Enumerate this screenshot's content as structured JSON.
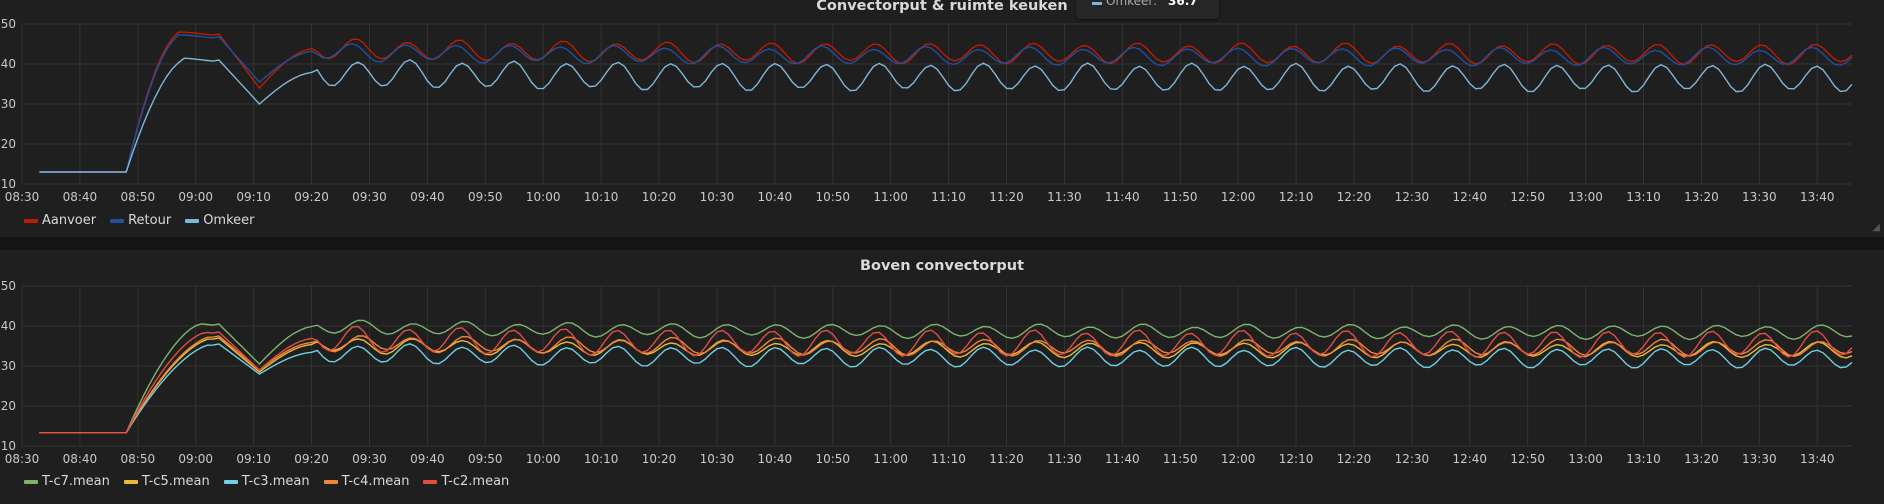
{
  "chart_data": [
    {
      "type": "line",
      "title": "Convectorput & ruimte keuken",
      "ylim": [
        10,
        50
      ],
      "yticks": [
        "10",
        "20",
        "30",
        "40",
        "50"
      ],
      "xticks": [
        "08:30",
        "08:40",
        "08:50",
        "09:00",
        "09:10",
        "09:20",
        "09:30",
        "09:40",
        "09:50",
        "10:00",
        "10:10",
        "10:20",
        "10:30",
        "10:40",
        "10:50",
        "11:00",
        "11:10",
        "11:20",
        "11:30",
        "11:40",
        "11:50",
        "12:00",
        "12:10",
        "12:20",
        "12:30",
        "12:40",
        "12:50",
        "13:00",
        "13:10",
        "13:20",
        "13:30",
        "13:40"
      ],
      "xrange_min": [
        0,
        316
      ],
      "grid": true,
      "legend": "bottom-left",
      "series": [
        {
          "name": "Aanvoer",
          "color": "#bf1b00",
          "shape": {
            "start": 13,
            "rise_at": 15,
            "rise_end": 24,
            "plateau": 47.5,
            "dip_at": 38,
            "dip_val": 34,
            "tail": 42.5,
            "amp": 2.3,
            "period": 9,
            "phase": 1.2
          }
        },
        {
          "name": "Retour",
          "color": "#1f4fa1",
          "shape": {
            "start": 13,
            "rise_at": 15,
            "rise_end": 24,
            "plateau": 46.8,
            "dip_at": 38,
            "dip_val": 35.5,
            "tail": 41.8,
            "amp": 2.0,
            "period": 9,
            "phase": 1.5
          }
        },
        {
          "name": "Omkeer",
          "color": "#7eb8d9",
          "shape": {
            "start": 13,
            "rise_at": 15,
            "rise_end": 25,
            "plateau": 41,
            "dip_at": 38,
            "dip_val": 30,
            "tail": 36.5,
            "amp": 3.2,
            "period": 9,
            "phase": 0.9
          }
        }
      ]
    },
    {
      "type": "line",
      "title": "Boven convectorput",
      "ylim": [
        10,
        50
      ],
      "yticks": [
        "10",
        "20",
        "30",
        "40",
        "50"
      ],
      "xticks": [
        "08:30",
        "08:40",
        "08:50",
        "09:00",
        "09:10",
        "09:20",
        "09:30",
        "09:40",
        "09:50",
        "10:00",
        "10:10",
        "10:20",
        "10:30",
        "10:40",
        "10:50",
        "11:00",
        "11:10",
        "11:20",
        "11:30",
        "11:40",
        "11:50",
        "12:00",
        "12:10",
        "12:20",
        "12:30",
        "12:40",
        "12:50",
        "13:00",
        "13:10",
        "13:20",
        "13:30",
        "13:40"
      ],
      "xrange_min": [
        0,
        316
      ],
      "grid": true,
      "legend": "bottom-left",
      "series": [
        {
          "name": "T-c7.mean",
          "color": "#7eb26d",
          "shape": {
            "start": 13.3,
            "rise_at": 15,
            "rise_end": 28,
            "plateau": 40.5,
            "dip_at": 38,
            "dip_val": 30.5,
            "tail": 38.5,
            "amp": 1.5,
            "period": 9,
            "phase": 0.5
          }
        },
        {
          "name": "T-c5.mean",
          "color": "#eab839",
          "shape": {
            "start": 13.3,
            "rise_at": 15,
            "rise_end": 30,
            "plateau": 37,
            "dip_at": 38,
            "dip_val": 28.5,
            "tail": 34,
            "amp": 1.7,
            "period": 9,
            "phase": 0.7
          }
        },
        {
          "name": "T-c3.mean",
          "color": "#6ed0e0",
          "shape": {
            "start": 13.3,
            "rise_at": 15,
            "rise_end": 30,
            "plateau": 35.5,
            "dip_at": 38,
            "dip_val": 28,
            "tail": 32,
            "amp": 2.2,
            "period": 9,
            "phase": 0.9
          }
        },
        {
          "name": "T-c4.mean",
          "color": "#ef843c",
          "shape": {
            "start": 13.3,
            "rise_at": 15,
            "rise_end": 30,
            "plateau": 37.5,
            "dip_at": 38,
            "dip_val": 29,
            "tail": 34.5,
            "amp": 1.8,
            "period": 9,
            "phase": 0.6
          }
        },
        {
          "name": "T-c2.mean",
          "color": "#e24d42",
          "shape": {
            "start": 13.3,
            "rise_at": 15,
            "rise_end": 29,
            "plateau": 38.5,
            "dip_at": 38,
            "dip_val": 29,
            "tail": 35.5,
            "amp": 3.0,
            "period": 9,
            "phase": 1.1
          }
        }
      ]
    }
  ],
  "tooltip": {
    "label": "Omkeer:",
    "value": "36.7",
    "color": "#7eb8d9"
  }
}
